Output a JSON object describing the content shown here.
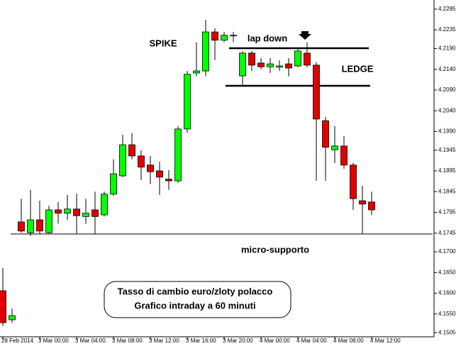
{
  "chart_data": {
    "type": "candlestick",
    "categories": [
      "28 Feb 2014",
      null,
      null,
      null,
      "3 Mar 00:00",
      null,
      null,
      null,
      "3 Mar 04:00",
      null,
      null,
      null,
      "3 Mar 08:00",
      null,
      null,
      null,
      "3 Mar 12:00",
      null,
      null,
      null,
      "3 Mar 16:00",
      null,
      null,
      null,
      "3 Mar 20:00",
      null,
      null,
      null,
      "4 Mar 00:00",
      null,
      null,
      null,
      "4 Mar 04:00",
      null,
      null,
      null,
      "4 Mar 08:00",
      null,
      null,
      null,
      "4 Mar 12:00"
    ],
    "open": [
      4.1606,
      4.1536,
      4.1772,
      4.1746,
      4.1777,
      4.1746,
      4.1801,
      4.1793,
      4.1803,
      4.1785,
      4.1801,
      4.1789,
      4.1839,
      4.1883,
      4.1958,
      4.1931,
      4.1909,
      4.1895,
      4.1875,
      4.1871,
      4.1996,
      4.2131,
      4.2136,
      4.223,
      4.221,
      4.2222,
      4.2124,
      4.2179,
      4.2155,
      4.2146,
      4.2145,
      4.2153,
      4.2148,
      4.2179,
      4.215,
      4.2016,
      4.1946,
      4.1955,
      4.1909,
      4.1823,
      4.182
    ],
    "high": [
      4.1661,
      4.1563,
      4.1828,
      4.1849,
      4.1823,
      4.1811,
      4.182,
      4.1837,
      4.184,
      4.1828,
      4.1845,
      4.1845,
      4.1923,
      4.1982,
      4.1986,
      4.1945,
      4.1931,
      4.1917,
      4.1897,
      4.2003,
      4.2136,
      4.2205,
      4.2259,
      4.2239,
      4.223,
      4.223,
      4.2183,
      4.2184,
      4.2167,
      4.2167,
      4.2162,
      4.2167,
      4.2191,
      4.2205,
      4.2157,
      4.2025,
      4.2003,
      4.1979,
      4.1914,
      4.1859,
      4.1845
    ],
    "low": [
      4.1521,
      4.1529,
      4.1746,
      4.1738,
      4.1743,
      4.1743,
      4.1768,
      4.1777,
      4.1743,
      4.1767,
      4.1743,
      4.1785,
      4.1835,
      4.188,
      4.1923,
      4.1873,
      4.1863,
      4.1837,
      4.1849,
      4.1866,
      4.1987,
      4.2123,
      4.2123,
      4.2162,
      4.2205,
      4.2205,
      4.2102,
      4.2136,
      4.214,
      4.2131,
      4.2136,
      4.2123,
      4.2145,
      4.2145,
      4.1871,
      4.1871,
      4.1914,
      4.19,
      4.1801,
      4.1743,
      4.1789
    ],
    "close": [
      4.1529,
      4.1546,
      4.175,
      4.1777,
      4.175,
      4.1801,
      4.1793,
      4.1803,
      4.1787,
      4.1793,
      4.1785,
      4.1839,
      4.1888,
      4.1958,
      4.1931,
      4.1904,
      4.1893,
      4.188,
      4.1871,
      4.1996,
      4.2128,
      4.2136,
      4.223,
      4.221,
      4.2222,
      4.2222,
      4.2179,
      4.215,
      4.2146,
      4.2153,
      4.2148,
      4.2143,
      4.2184,
      4.215,
      4.202,
      4.1952,
      4.1955,
      4.1909,
      4.1828,
      4.1815,
      4.1801
    ],
    "up_color": "#00ff00",
    "down_color": "#e00000",
    "ylim": [
      4.1495,
      4.2307
    ],
    "yticks": [
      4.2285,
      4.2235,
      {
        "value": 4.219,
        "label": "4.2190"
      },
      {
        "value": 4.214,
        "label": "4.2140"
      },
      {
        "value": 4.209,
        "label": "4.2090"
      },
      {
        "value": 4.204,
        "label": "4.2040"
      },
      {
        "value": 4.199,
        "label": "4.1990"
      },
      4.1945,
      4.1895,
      4.1845,
      4.1795,
      4.1745,
      {
        "value": 4.17,
        "label": "4.1700"
      },
      {
        "value": 4.165,
        "label": "4.1650"
      },
      {
        "value": 4.16,
        "label": "4.1600"
      },
      {
        "value": 4.155,
        "label": "4.1550"
      },
      4.1505
    ],
    "annotations": [
      "SPIKE",
      "lap down",
      "LEDGE",
      "micro-supporto"
    ],
    "note": [
      "Tasso di cambio euro/zloty polacco",
      "Grafico intraday a 60 minuti"
    ]
  }
}
